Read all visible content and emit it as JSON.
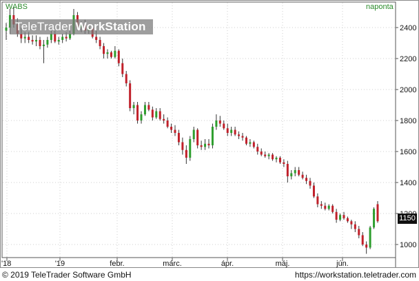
{
  "header": {
    "symbol": "WABS",
    "interval": "naponta"
  },
  "watermark": {
    "brand": "TeleTrader ",
    "product": "WorkStation"
  },
  "footer": {
    "copyright": "© 2019 TeleTrader Software GmbH",
    "url": "https://workstation.teletrader.com"
  },
  "last_price": "1150",
  "colors": {
    "up": "#2e9e2e",
    "down": "#c0202a",
    "grid": "#cccccc",
    "text_green": "#2a8a2a"
  },
  "chart_data": {
    "type": "candlestick",
    "title": "WABS",
    "y_ticks": [
      1000,
      1200,
      1400,
      1600,
      1800,
      2000,
      2200,
      2400
    ],
    "ylim": [
      920,
      2560
    ],
    "x_tick_labels": [
      "'18",
      "'19",
      "febr.",
      "márc.",
      "ápr.",
      "máj.",
      "jún."
    ],
    "grid": true,
    "last_value": 1150,
    "series": [
      {
        "o": 2380,
        "h": 2430,
        "l": 2320,
        "c": 2400
      },
      {
        "o": 2400,
        "h": 2520,
        "l": 2360,
        "c": 2480
      },
      {
        "o": 2480,
        "h": 2530,
        "l": 2400,
        "c": 2420
      },
      {
        "o": 2420,
        "h": 2460,
        "l": 2340,
        "c": 2360
      },
      {
        "o": 2360,
        "h": 2400,
        "l": 2300,
        "c": 2330
      },
      {
        "o": 2330,
        "h": 2370,
        "l": 2300,
        "c": 2340
      },
      {
        "o": 2340,
        "h": 2370,
        "l": 2300,
        "c": 2320
      },
      {
        "o": 2320,
        "h": 2350,
        "l": 2290,
        "c": 2310
      },
      {
        "o": 2310,
        "h": 2350,
        "l": 2280,
        "c": 2320
      },
      {
        "o": 2320,
        "h": 2340,
        "l": 2260,
        "c": 2280
      },
      {
        "o": 2280,
        "h": 2320,
        "l": 2170,
        "c": 2290
      },
      {
        "o": 2290,
        "h": 2340,
        "l": 2270,
        "c": 2320
      },
      {
        "o": 2320,
        "h": 2380,
        "l": 2300,
        "c": 2360
      },
      {
        "o": 2360,
        "h": 2380,
        "l": 2300,
        "c": 2310
      },
      {
        "o": 2310,
        "h": 2340,
        "l": 2290,
        "c": 2320
      },
      {
        "o": 2320,
        "h": 2360,
        "l": 2300,
        "c": 2340
      },
      {
        "o": 2340,
        "h": 2370,
        "l": 2310,
        "c": 2330
      },
      {
        "o": 2330,
        "h": 2380,
        "l": 2320,
        "c": 2360
      },
      {
        "o": 2360,
        "h": 2520,
        "l": 2350,
        "c": 2480
      },
      {
        "o": 2480,
        "h": 2500,
        "l": 2380,
        "c": 2400
      },
      {
        "o": 2400,
        "h": 2440,
        "l": 2370,
        "c": 2420
      },
      {
        "o": 2420,
        "h": 2450,
        "l": 2360,
        "c": 2380
      },
      {
        "o": 2380,
        "h": 2420,
        "l": 2360,
        "c": 2400
      },
      {
        "o": 2400,
        "h": 2410,
        "l": 2330,
        "c": 2340
      },
      {
        "o": 2340,
        "h": 2380,
        "l": 2300,
        "c": 2320
      },
      {
        "o": 2320,
        "h": 2340,
        "l": 2260,
        "c": 2280
      },
      {
        "o": 2280,
        "h": 2300,
        "l": 2200,
        "c": 2230
      },
      {
        "o": 2230,
        "h": 2260,
        "l": 2200,
        "c": 2240
      },
      {
        "o": 2240,
        "h": 2250,
        "l": 2200,
        "c": 2210
      },
      {
        "o": 2210,
        "h": 2280,
        "l": 2200,
        "c": 2250
      },
      {
        "o": 2250,
        "h": 2260,
        "l": 2150,
        "c": 2170
      },
      {
        "o": 2170,
        "h": 2200,
        "l": 2080,
        "c": 2100
      },
      {
        "o": 2100,
        "h": 2120,
        "l": 2020,
        "c": 2040
      },
      {
        "o": 2040,
        "h": 2060,
        "l": 1860,
        "c": 1880
      },
      {
        "o": 1880,
        "h": 1920,
        "l": 1840,
        "c": 1900
      },
      {
        "o": 1900,
        "h": 1920,
        "l": 1780,
        "c": 1800
      },
      {
        "o": 1800,
        "h": 1860,
        "l": 1780,
        "c": 1840
      },
      {
        "o": 1840,
        "h": 1920,
        "l": 1830,
        "c": 1900
      },
      {
        "o": 1900,
        "h": 1920,
        "l": 1860,
        "c": 1870
      },
      {
        "o": 1870,
        "h": 1890,
        "l": 1800,
        "c": 1820
      },
      {
        "o": 1820,
        "h": 1880,
        "l": 1810,
        "c": 1860
      },
      {
        "o": 1860,
        "h": 1880,
        "l": 1800,
        "c": 1810
      },
      {
        "o": 1810,
        "h": 1840,
        "l": 1780,
        "c": 1800
      },
      {
        "o": 1800,
        "h": 1820,
        "l": 1750,
        "c": 1760
      },
      {
        "o": 1760,
        "h": 1780,
        "l": 1720,
        "c": 1740
      },
      {
        "o": 1740,
        "h": 1770,
        "l": 1700,
        "c": 1720
      },
      {
        "o": 1720,
        "h": 1740,
        "l": 1640,
        "c": 1660
      },
      {
        "o": 1660,
        "h": 1690,
        "l": 1580,
        "c": 1610
      },
      {
        "o": 1610,
        "h": 1640,
        "l": 1520,
        "c": 1560
      },
      {
        "o": 1560,
        "h": 1700,
        "l": 1540,
        "c": 1680
      },
      {
        "o": 1680,
        "h": 1760,
        "l": 1660,
        "c": 1740
      },
      {
        "o": 1740,
        "h": 1750,
        "l": 1620,
        "c": 1640
      },
      {
        "o": 1640,
        "h": 1670,
        "l": 1610,
        "c": 1630
      },
      {
        "o": 1630,
        "h": 1680,
        "l": 1610,
        "c": 1650
      },
      {
        "o": 1650,
        "h": 1680,
        "l": 1620,
        "c": 1640
      },
      {
        "o": 1640,
        "h": 1780,
        "l": 1620,
        "c": 1760
      },
      {
        "o": 1760,
        "h": 1840,
        "l": 1740,
        "c": 1800
      },
      {
        "o": 1800,
        "h": 1830,
        "l": 1760,
        "c": 1780
      },
      {
        "o": 1780,
        "h": 1800,
        "l": 1740,
        "c": 1750
      },
      {
        "o": 1750,
        "h": 1780,
        "l": 1700,
        "c": 1720
      },
      {
        "o": 1720,
        "h": 1760,
        "l": 1700,
        "c": 1740
      },
      {
        "o": 1740,
        "h": 1760,
        "l": 1700,
        "c": 1710
      },
      {
        "o": 1710,
        "h": 1730,
        "l": 1680,
        "c": 1700
      },
      {
        "o": 1700,
        "h": 1720,
        "l": 1670,
        "c": 1690
      },
      {
        "o": 1690,
        "h": 1700,
        "l": 1640,
        "c": 1650
      },
      {
        "o": 1650,
        "h": 1680,
        "l": 1630,
        "c": 1660
      },
      {
        "o": 1660,
        "h": 1670,
        "l": 1620,
        "c": 1630
      },
      {
        "o": 1630,
        "h": 1650,
        "l": 1580,
        "c": 1600
      },
      {
        "o": 1600,
        "h": 1620,
        "l": 1570,
        "c": 1580
      },
      {
        "o": 1580,
        "h": 1600,
        "l": 1560,
        "c": 1570
      },
      {
        "o": 1570,
        "h": 1590,
        "l": 1550,
        "c": 1580
      },
      {
        "o": 1580,
        "h": 1590,
        "l": 1540,
        "c": 1550
      },
      {
        "o": 1550,
        "h": 1570,
        "l": 1530,
        "c": 1560
      },
      {
        "o": 1560,
        "h": 1570,
        "l": 1520,
        "c": 1530
      },
      {
        "o": 1530,
        "h": 1550,
        "l": 1500,
        "c": 1520
      },
      {
        "o": 1520,
        "h": 1540,
        "l": 1400,
        "c": 1440
      },
      {
        "o": 1440,
        "h": 1480,
        "l": 1420,
        "c": 1460
      },
      {
        "o": 1460,
        "h": 1500,
        "l": 1440,
        "c": 1480
      },
      {
        "o": 1480,
        "h": 1500,
        "l": 1440,
        "c": 1450
      },
      {
        "o": 1450,
        "h": 1470,
        "l": 1420,
        "c": 1430
      },
      {
        "o": 1430,
        "h": 1450,
        "l": 1390,
        "c": 1410
      },
      {
        "o": 1410,
        "h": 1430,
        "l": 1360,
        "c": 1380
      },
      {
        "o": 1380,
        "h": 1400,
        "l": 1300,
        "c": 1310
      },
      {
        "o": 1310,
        "h": 1330,
        "l": 1240,
        "c": 1260
      },
      {
        "o": 1260,
        "h": 1280,
        "l": 1230,
        "c": 1250
      },
      {
        "o": 1250,
        "h": 1270,
        "l": 1220,
        "c": 1230
      },
      {
        "o": 1230,
        "h": 1260,
        "l": 1220,
        "c": 1250
      },
      {
        "o": 1250,
        "h": 1260,
        "l": 1200,
        "c": 1210
      },
      {
        "o": 1210,
        "h": 1230,
        "l": 1140,
        "c": 1160
      },
      {
        "o": 1160,
        "h": 1200,
        "l": 1150,
        "c": 1190
      },
      {
        "o": 1190,
        "h": 1210,
        "l": 1160,
        "c": 1170
      },
      {
        "o": 1170,
        "h": 1180,
        "l": 1140,
        "c": 1150
      },
      {
        "o": 1150,
        "h": 1160,
        "l": 1100,
        "c": 1130
      },
      {
        "o": 1130,
        "h": 1150,
        "l": 1080,
        "c": 1100
      },
      {
        "o": 1100,
        "h": 1120,
        "l": 1040,
        "c": 1060
      },
      {
        "o": 1060,
        "h": 1080,
        "l": 990,
        "c": 1000
      },
      {
        "o": 1000,
        "h": 1020,
        "l": 940,
        "c": 980
      },
      {
        "o": 980,
        "h": 1120,
        "l": 970,
        "c": 1110
      },
      {
        "o": 1110,
        "h": 1240,
        "l": 1100,
        "c": 1230
      },
      {
        "o": 1260,
        "h": 1280,
        "l": 1140,
        "c": 1150
      }
    ]
  }
}
